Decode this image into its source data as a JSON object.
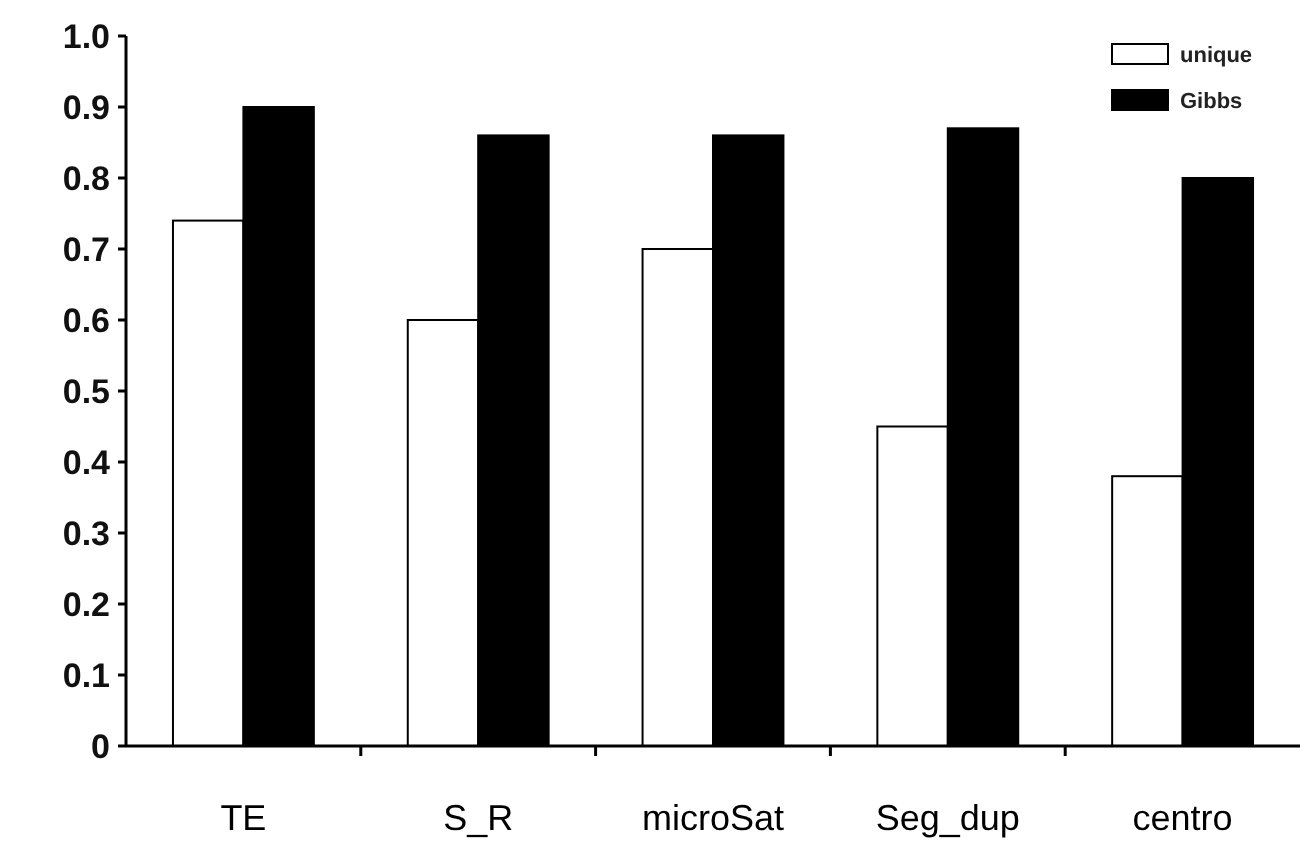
{
  "chart_data": {
    "type": "bar",
    "categories": [
      "TE",
      "S_R",
      "microSat",
      "Seg_dup",
      "centro"
    ],
    "series": [
      {
        "name": "unique",
        "color": "#ffffff",
        "values": [
          0.74,
          0.6,
          0.7,
          0.45,
          0.38
        ]
      },
      {
        "name": "Gibbs",
        "color": "#000000",
        "values": [
          0.9,
          0.86,
          0.86,
          0.87,
          0.8
        ]
      }
    ],
    "ylim": [
      0,
      1
    ],
    "yticks": [
      {
        "value": 0,
        "label": "0"
      },
      {
        "value": 0.1,
        "label": "0.1"
      },
      {
        "value": 0.2,
        "label": "0.2"
      },
      {
        "value": 0.3,
        "label": "0.3"
      },
      {
        "value": 0.4,
        "label": "0.4"
      },
      {
        "value": 0.5,
        "label": "0.5"
      },
      {
        "value": 0.6,
        "label": "0.6"
      },
      {
        "value": 0.7,
        "label": "0.7"
      },
      {
        "value": 0.8,
        "label": "0.8"
      },
      {
        "value": 0.9,
        "label": "0.9"
      },
      {
        "value": 1,
        "label": "1.0"
      }
    ],
    "grid": false,
    "legend": "top right"
  }
}
